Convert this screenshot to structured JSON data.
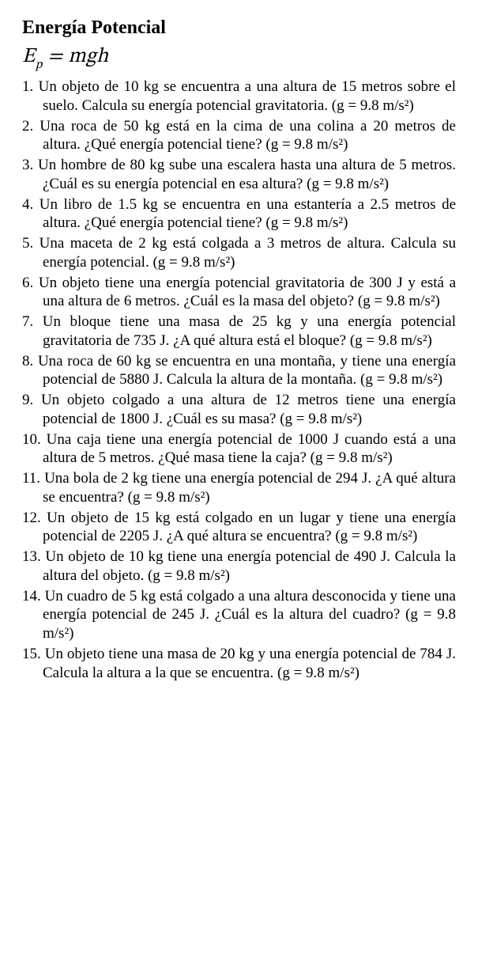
{
  "title": "Energía Potencial",
  "formula": {
    "lhs_var": "E",
    "lhs_sub": "p",
    "eq": " = ",
    "rhs": "mgh"
  },
  "problems": [
    "Un objeto de 10 kg se encuentra a una altura de 15 metros sobre el suelo. Calcula su energía potencial gravitatoria. (g = 9.8 m/s²)",
    "Una roca de 50 kg está en la cima de una colina a 20 metros de altura. ¿Qué energía potencial tiene? (g = 9.8 m/s²)",
    "Un hombre de 80 kg sube una escalera hasta una altura de 5 metros. ¿Cuál es su energía potencial en esa altura? (g = 9.8 m/s²)",
    "Un libro de 1.5 kg se encuentra en una estantería a 2.5 metros de altura. ¿Qué energía potencial tiene? (g = 9.8 m/s²)",
    "Una maceta de 2 kg está colgada a 3 metros de altura. Calcula su energía potencial. (g = 9.8 m/s²)",
    "Un objeto tiene una energía potencial gravitatoria de 300 J y está a una altura de 6 metros. ¿Cuál es la masa del objeto? (g = 9.8 m/s²)",
    "Un bloque tiene una masa de 25 kg y una energía potencial gravitatoria de 735 J. ¿A qué altura está el bloque? (g = 9.8 m/s²)",
    "Una roca de 60 kg se encuentra en una montaña, y tiene una energía potencial de 5880 J. Calcula la altura de la montaña. (g = 9.8 m/s²)",
    "Un objeto colgado a una altura de 12 metros tiene una energía potencial de 1800 J. ¿Cuál es su masa? (g = 9.8 m/s²)",
    "Una caja tiene una energía potencial de 1000 J cuando está a una altura de 5 metros. ¿Qué masa tiene la caja? (g = 9.8 m/s²)",
    "Una bola de 2 kg tiene una energía potencial de 294 J. ¿A qué altura se encuentra? (g = 9.8 m/s²)",
    "Un objeto de 15 kg está colgado en un lugar y tiene una energía potencial de 2205 J. ¿A qué altura se encuentra? (g = 9.8 m/s²)",
    "Un objeto de 10 kg tiene una energía potencial de 490 J. Calcula la altura del objeto. (g = 9.8 m/s²)",
    "Un cuadro de 5 kg está colgado a una altura desconocida y tiene una energía potencial de 245 J. ¿Cuál es la altura del cuadro? (g = 9.8 m/s²)",
    "Un objeto tiene una masa de 20 kg y una energía potencial de 784 J. Calcula la altura a la que se encuentra. (g = 9.8 m/s²)"
  ]
}
